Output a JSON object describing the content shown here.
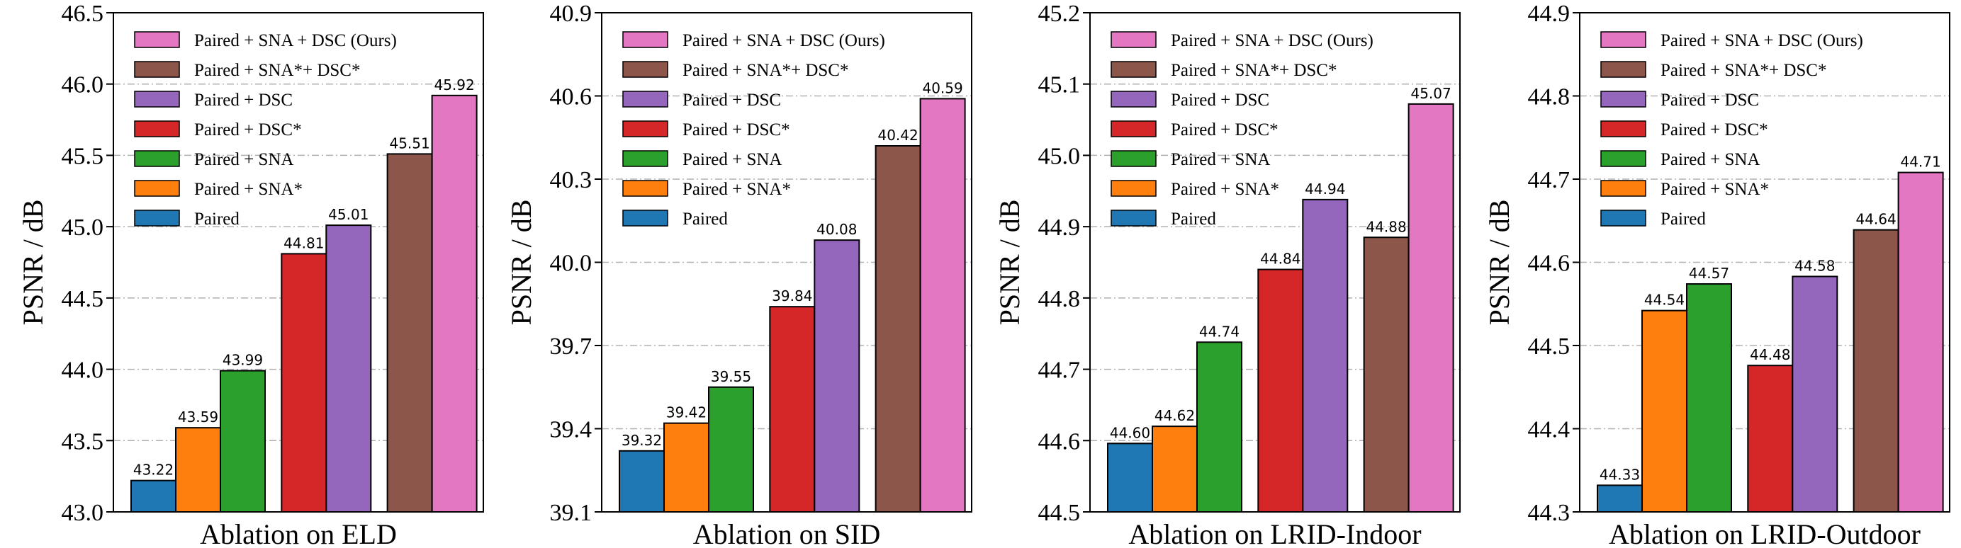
{
  "legend_entries": [
    {
      "label": "Paired + SNA  + DSC (Ours)",
      "color": "#e377c2"
    },
    {
      "label": "Paired + SNA*+ DSC*",
      "color": "#8c564b"
    },
    {
      "label": "Paired + DSC",
      "color": "#9467bd"
    },
    {
      "label": "Paired + DSC*",
      "color": "#d62728"
    },
    {
      "label": "Paired + SNA",
      "color": "#2ca02c"
    },
    {
      "label": "Paired + SNA*",
      "color": "#ff7f0e"
    },
    {
      "label": "Paired",
      "color": "#1f77b4"
    }
  ],
  "chart_data": [
    {
      "type": "bar",
      "title": "Ablation on ELD",
      "xlabel": "Ablation on ELD",
      "ylabel": "PSNR / dB",
      "ylim": [
        43.0,
        46.5
      ],
      "yticks": [
        "43.0",
        "43.5",
        "44.0",
        "44.5",
        "45.0",
        "45.5",
        "46.0",
        "46.5"
      ],
      "grid": "horizontal dash-dot",
      "legend_position": "top-left",
      "categories": [
        "Paired",
        "Paired + SNA*",
        "Paired + SNA",
        "Paired + DSC*",
        "Paired + DSC",
        "Paired + SNA*+ DSC*",
        "Paired + SNA  + DSC (Ours)"
      ],
      "values": [
        43.22,
        43.59,
        43.99,
        44.81,
        45.01,
        45.51,
        45.92
      ],
      "value_labels": [
        "43.22",
        "43.59",
        "43.99",
        "44.81",
        "45.01",
        "45.51",
        "45.92"
      ],
      "colors": [
        "#1f77b4",
        "#ff7f0e",
        "#2ca02c",
        "#d62728",
        "#9467bd",
        "#8c564b",
        "#e377c2"
      ]
    },
    {
      "type": "bar",
      "title": "Ablation on SID",
      "xlabel": "Ablation on SID",
      "ylabel": "PSNR / dB",
      "ylim": [
        39.1,
        40.9
      ],
      "yticks": [
        "39.1",
        "39.4",
        "39.7",
        "40.0",
        "40.3",
        "40.6",
        "40.9"
      ],
      "grid": "horizontal dash-dot",
      "legend_position": "top-left",
      "categories": [
        "Paired",
        "Paired + SNA*",
        "Paired + SNA",
        "Paired + DSC*",
        "Paired + DSC",
        "Paired + SNA*+ DSC*",
        "Paired + SNA  + DSC (Ours)"
      ],
      "values": [
        39.32,
        39.42,
        39.55,
        39.84,
        40.08,
        40.42,
        40.59
      ],
      "value_labels": [
        "39.32",
        "39.42",
        "39.55",
        "39.84",
        "40.08",
        "40.42",
        "40.59"
      ],
      "colors": [
        "#1f77b4",
        "#ff7f0e",
        "#2ca02c",
        "#d62728",
        "#9467bd",
        "#8c564b",
        "#e377c2"
      ]
    },
    {
      "type": "bar",
      "title": "Ablation on LRID-Indoor",
      "xlabel": "Ablation on LRID-Indoor",
      "ylabel": "PSNR / dB",
      "ylim": [
        44.5,
        45.2
      ],
      "yticks": [
        "44.5",
        "44.6",
        "44.7",
        "44.8",
        "44.9",
        "45.0",
        "45.1",
        "45.2"
      ],
      "grid": "horizontal dash-dot",
      "legend_position": "top-left",
      "categories": [
        "Paired",
        "Paired + SNA*",
        "Paired + SNA",
        "Paired + DSC*",
        "Paired + DSC",
        "Paired + SNA*+ DSC*",
        "Paired + SNA  + DSC (Ours)"
      ],
      "values": [
        44.596,
        44.62,
        44.738,
        44.84,
        44.938,
        44.885,
        45.072
      ],
      "value_labels": [
        "44.60",
        "44.62",
        "44.74",
        "44.84",
        "44.94",
        "44.88",
        "45.07"
      ],
      "colors": [
        "#1f77b4",
        "#ff7f0e",
        "#2ca02c",
        "#d62728",
        "#9467bd",
        "#8c564b",
        "#e377c2"
      ]
    },
    {
      "type": "bar",
      "title": "Ablation on LRID-Outdoor",
      "xlabel": "Ablation on LRID-Outdoor",
      "ylabel": "PSNR / dB",
      "ylim": [
        44.3,
        44.9
      ],
      "yticks": [
        "44.3",
        "44.4",
        "44.5",
        "44.6",
        "44.7",
        "44.8",
        "44.9"
      ],
      "grid": "horizontal dash-dot",
      "legend_position": "top-left",
      "categories": [
        "Paired",
        "Paired + SNA*",
        "Paired + SNA",
        "Paired + DSC*",
        "Paired + DSC",
        "Paired + SNA*+ DSC*",
        "Paired + SNA  + DSC (Ours)"
      ],
      "values": [
        44.332,
        44.542,
        44.574,
        44.476,
        44.583,
        44.639,
        44.708
      ],
      "value_labels": [
        "44.33",
        "44.54",
        "44.57",
        "44.48",
        "44.58",
        "44.64",
        "44.71"
      ],
      "colors": [
        "#1f77b4",
        "#ff7f0e",
        "#2ca02c",
        "#d62728",
        "#9467bd",
        "#8c564b",
        "#e377c2"
      ]
    }
  ]
}
